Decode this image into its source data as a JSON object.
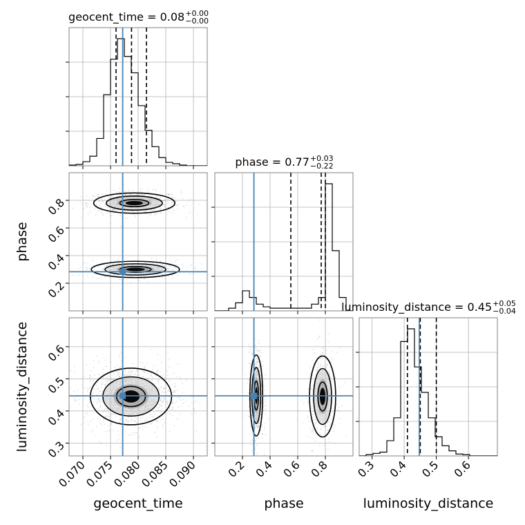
{
  "chart_data": {
    "type": "corner",
    "parameters": [
      "geocent_time",
      "phase",
      "luminosity_distance"
    ],
    "truths": [
      0.0772,
      0.283,
      0.447
    ],
    "ranges": [
      [
        0.0675,
        0.0925
      ],
      [
        0.0,
        1.0
      ],
      [
        0.26,
        0.69
      ]
    ],
    "ticks": [
      {
        "values": [
          0.07,
          0.075,
          0.08,
          0.085,
          0.09
        ],
        "labels": [
          "0.070",
          "0.075",
          "0.080",
          "0.085",
          "0.090"
        ]
      },
      {
        "values": [
          0.2,
          0.4,
          0.6,
          0.8
        ],
        "labels": [
          "0.2",
          "0.4",
          "0.6",
          "0.8"
        ]
      },
      {
        "values": [
          0.3,
          0.4,
          0.5,
          0.6
        ],
        "labels": [
          "0.3",
          "0.4",
          "0.5",
          "0.6"
        ]
      }
    ],
    "titles": [
      {
        "text": "geocent_time = 0.08",
        "sup": "+0.00",
        "sub": "−0.00"
      },
      {
        "text": "phase = 0.77",
        "sup": "+0.03",
        "sub": "−0.22"
      },
      {
        "text": "luminosity_distance = 0.45",
        "sup": "+0.05",
        "sub": "−0.04"
      }
    ],
    "quantiles": [
      [
        0.076,
        0.0788,
        0.0815
      ],
      [
        0.55,
        0.77,
        0.8
      ],
      [
        0.41,
        0.45,
        0.5
      ]
    ],
    "histograms": [
      {
        "edges": [
          0.0675,
          0.0925
        ],
        "values": [
          0.5,
          1,
          3,
          7,
          20,
          52,
          78,
          93,
          80,
          68,
          44,
          26,
          14,
          6,
          2.5,
          1.5,
          0.5,
          0,
          0,
          0
        ]
      },
      {
        "edges": [
          0.0,
          1.0
        ],
        "values": [
          0,
          0,
          2,
          6,
          15,
          10,
          5,
          3,
          2,
          2,
          2,
          2,
          2,
          2,
          5,
          10,
          95,
          45,
          10,
          0
        ]
      },
      {
        "edges": [
          0.26,
          0.69
        ],
        "values": [
          0,
          1,
          2,
          3,
          12,
          30,
          90,
          100,
          70,
          50,
          30,
          15,
          8,
          4,
          1.5,
          1,
          0,
          0,
          0,
          0
        ]
      }
    ],
    "contours": [
      {
        "pair": [
          0,
          1
        ],
        "mode": "bimodal",
        "peaks": [
          {
            "x": 0.0793,
            "y": 0.78,
            "sx": 0.0035,
            "sy": 0.035
          },
          {
            "x": 0.0795,
            "y": 0.3,
            "sx": 0.0038,
            "sy": 0.028
          }
        ]
      },
      {
        "pair": [
          0,
          2
        ],
        "mode": "single",
        "peaks": [
          {
            "x": 0.0787,
            "y": 0.445,
            "sx": 0.0035,
            "sy": 0.042
          }
        ]
      },
      {
        "pair": [
          1,
          2
        ],
        "mode": "bimodal",
        "peaks": [
          {
            "x": 0.3,
            "y": 0.448,
            "sx": 0.022,
            "sy": 0.06
          },
          {
            "x": 0.78,
            "y": 0.445,
            "sx": 0.045,
            "sy": 0.06
          }
        ]
      }
    ],
    "colors": {
      "truth": "#4682b4",
      "hist": "#000000",
      "quantile": "#000000",
      "points": "#a9a9a9"
    },
    "grid": true
  }
}
